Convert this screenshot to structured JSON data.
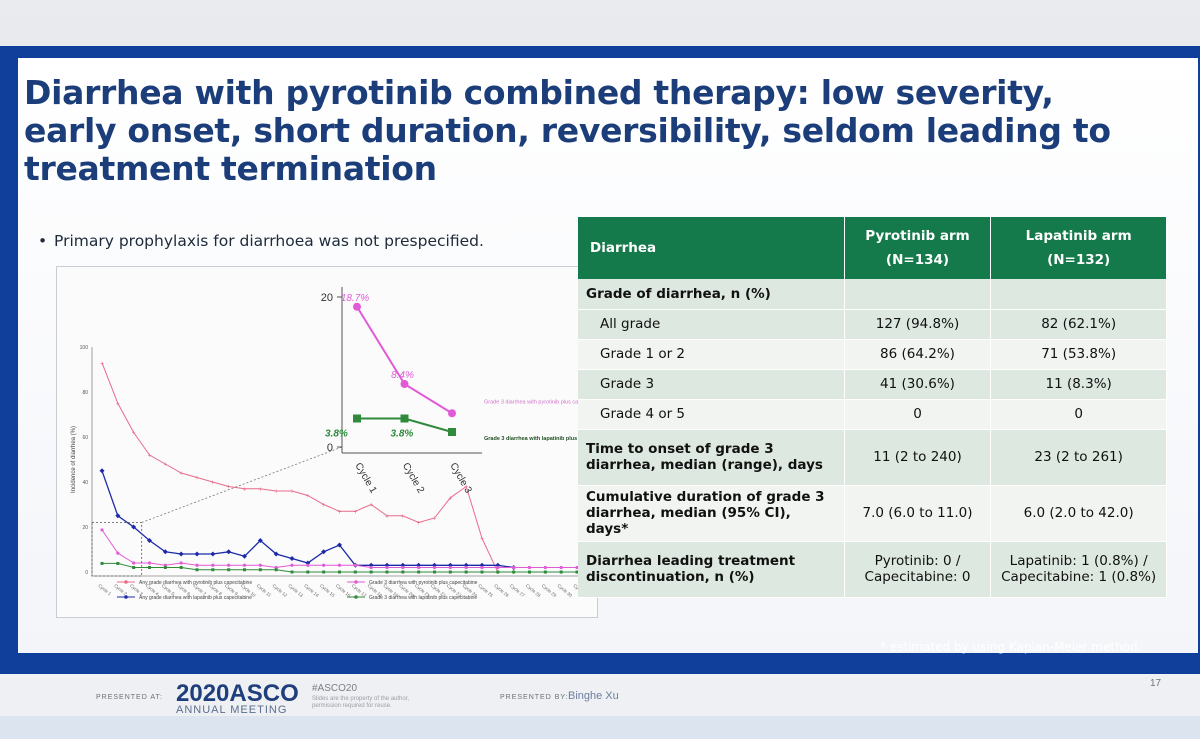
{
  "slide": {
    "title": "Diarrhea with pyrotinib combined therapy: low severity, early onset, short duration, reversibility, seldom leading to treatment termination",
    "bullet": "Primary prophylaxis for diarrhoea was not prespecified.",
    "footnote": "* estimated by using Kaplan-Meier method."
  },
  "table": {
    "header": {
      "col1": "Diarrhea",
      "col2_line1": "Pyrotinib arm",
      "col2_line2": "(N=134)",
      "col3_line1": "Lapatinib arm",
      "col3_line2": "(N=132)"
    },
    "rows": [
      {
        "label": "Grade of diarrhea, n (%)",
        "pyro": "",
        "lapa": "",
        "style": "g",
        "indent": false
      },
      {
        "label": "All grade",
        "pyro": "127 (94.8%)",
        "lapa": "82 (62.1%)",
        "style": "g",
        "indent": true
      },
      {
        "label": "Grade 1 or 2",
        "pyro": "86 (64.2%)",
        "lapa": "71 (53.8%)",
        "style": "w",
        "indent": true
      },
      {
        "label": "Grade 3",
        "pyro": "41 (30.6%)",
        "lapa": "11 (8.3%)",
        "style": "g",
        "indent": true
      },
      {
        "label": "Grade 4 or 5",
        "pyro": "0",
        "lapa": "0",
        "style": "w",
        "indent": true
      },
      {
        "label": "Time to onset of grade 3 diarrhea, median (range), days",
        "pyro": "11 (2 to 240)",
        "lapa": "23 (2 to 261)",
        "style": "g",
        "indent": false
      },
      {
        "label": "Cumulative duration of grade 3 diarrhea, median (95% CI), days*",
        "pyro": "7.0 (6.0 to 11.0)",
        "lapa": "6.0 (2.0 to 42.0)",
        "style": "w",
        "indent": false
      },
      {
        "label": "Diarrhea leading treatment discontinuation, n (%)",
        "pyro": "Pyrotinib: 0 / Capecitabine: 0",
        "lapa": "Lapatinib: 1 (0.8%) / Capecitabine: 1 (0.8%)",
        "style": "g",
        "indent": false
      }
    ]
  },
  "footer": {
    "presented_at": "PRESENTED AT:",
    "asco": "2020ASCO",
    "annual_meeting": "ANNUAL MEETING",
    "hashtag": "#ASCO20",
    "note": "Slides are the property of the author, permission required for reuse.",
    "presented_by": "PRESENTED BY:",
    "presenter": "Binghe Xu",
    "page": "17"
  },
  "colors": {
    "pink": "#e86b8a",
    "magenta": "#e25bd6",
    "blue": "#1c2aa8",
    "green": "#2f8a3a",
    "header_green": "#157a4b"
  },
  "chart_data": [
    {
      "type": "line",
      "xlabel": "Treatment Cycles",
      "ylabel": "Incidence of diarrhea (%)",
      "yticks": [
        0,
        20,
        40,
        60,
        80,
        100
      ],
      "ylim": [
        0,
        100
      ],
      "x": [
        "Cycle 1",
        "Cycle 2",
        "Cycle 3",
        "Cycle 4",
        "Cycle 5",
        "Cycle 6",
        "Cycle 7",
        "Cycle 8",
        "Cycle 9",
        "Cycle 10",
        "Cycle 11",
        "Cycle 12",
        "Cycle 13",
        "Cycle 14",
        "Cycle 15",
        "Cycle 16",
        "Cycle 17",
        "Cycle 18",
        "Cycle 19",
        "Cycle 20",
        "Cycle 21",
        "Cycle 22",
        "Cycle 23",
        "Cycle 24",
        "Cycle 25",
        "Cycle 26",
        "Cycle 27",
        "Cycle 28",
        "Cycle 29",
        "Cycle 30",
        "Cycle 31"
      ],
      "series": [
        {
          "name": "Any grade diarrhea with pyrotinib plus capecitabine",
          "color": "#e86b8a",
          "marker": "plus",
          "values": [
            93,
            75,
            62,
            52,
            48,
            44,
            42,
            40,
            38,
            37,
            37,
            36,
            36,
            34,
            30,
            27,
            27,
            30,
            25,
            25,
            22,
            24,
            33,
            38,
            15,
            0,
            0,
            0,
            0,
            0,
            0
          ]
        },
        {
          "name": "Any grade diarrhea with lapatinib plus capecitabine",
          "color": "#1c2aa8",
          "marker": "diamond",
          "values": [
            45,
            25,
            20,
            14,
            9,
            8,
            8,
            8,
            9,
            7,
            14,
            8,
            6,
            4,
            9,
            12,
            3,
            3,
            3,
            3,
            3,
            3,
            3,
            3,
            3,
            3,
            2,
            null,
            null,
            null,
            null
          ]
        },
        {
          "name": "Grade 3 diarrhea with pyrotinib plus capecitabine",
          "color": "#e25bd6",
          "marker": "circle",
          "values": [
            18.7,
            8.4,
            4,
            4,
            3,
            4,
            3,
            3,
            3,
            3,
            3,
            2,
            3,
            3,
            3,
            3,
            3,
            2,
            2,
            2,
            2,
            2,
            2,
            2,
            2,
            2,
            2,
            2,
            2,
            2,
            2
          ]
        },
        {
          "name": "Grade 3 diarrhea with lapatinib plus capecitabine",
          "color": "#2f8a3a",
          "marker": "square",
          "values": [
            3.8,
            3.8,
            2,
            2,
            2,
            2,
            1,
            1,
            1,
            1,
            1,
            1,
            0,
            0,
            0,
            0,
            0,
            0,
            0,
            0,
            0,
            0,
            0,
            0,
            0,
            0,
            0,
            0,
            0,
            0,
            0
          ]
        }
      ],
      "legend_placement": "bottom"
    },
    {
      "type": "line",
      "title": "",
      "yticks": [
        0,
        20
      ],
      "ylim": [
        0,
        20
      ],
      "x": [
        "Cycle 1",
        "Cycle 2",
        "Cycle 3"
      ],
      "series": [
        {
          "name": "Grade 3 diarrhea with pyrotinib plus capecitabine",
          "color": "#e25bd6",
          "values": [
            18.7,
            8.4,
            4.5
          ],
          "labels": [
            "18.7%",
            "8.4%",
            ""
          ]
        },
        {
          "name": "Grade 3 diarrhea with lapatinib plus capecitabine",
          "color": "#2f8a3a",
          "values": [
            3.8,
            3.8,
            2.0
          ],
          "labels": [
            "3.8%",
            "3.8%",
            ""
          ]
        }
      ]
    }
  ]
}
